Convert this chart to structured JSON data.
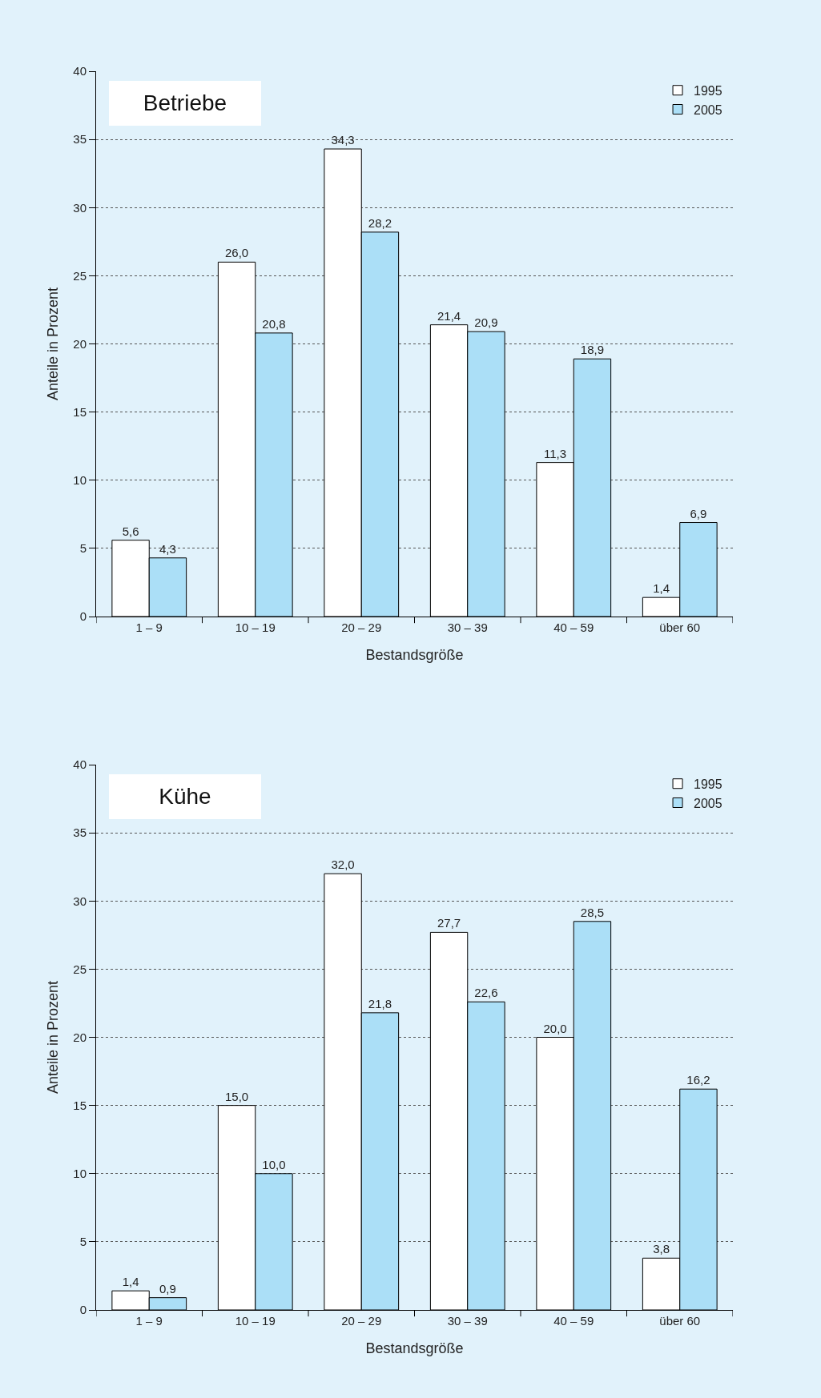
{
  "chart_data": [
    {
      "type": "bar",
      "title": "Betriebe",
      "xlabel": "Bestandsgröße",
      "ylabel": "Anteile in Prozent",
      "categories": [
        "1 – 9",
        "10 – 19",
        "20 – 29",
        "30 – 39",
        "40 – 59",
        "über 60"
      ],
      "series": [
        {
          "name": "1995",
          "color": "#ffffff",
          "values": [
            5.6,
            26.0,
            34.3,
            21.4,
            11.3,
            1.4
          ],
          "value_labels": [
            "5,6",
            "26,0",
            "34,3",
            "21,4",
            "11,3",
            "1,4"
          ]
        },
        {
          "name": "2005",
          "color": "#abdff7",
          "values": [
            4.3,
            20.8,
            28.2,
            20.9,
            18.9,
            6.9
          ],
          "value_labels": [
            "4,3",
            "20,8",
            "28,2",
            "20,9",
            "18,9",
            "6,9"
          ]
        }
      ],
      "ylim": [
        0,
        40
      ],
      "yticks": [
        0,
        5,
        10,
        15,
        20,
        25,
        30,
        35,
        40
      ],
      "grid": "y",
      "legend": "top right"
    },
    {
      "type": "bar",
      "title": "Kühe",
      "xlabel": "Bestandsgröße",
      "ylabel": "Anteile in Prozent",
      "categories": [
        "1 – 9",
        "10 – 19",
        "20 – 29",
        "30 – 39",
        "40 – 59",
        "über 60"
      ],
      "series": [
        {
          "name": "1995",
          "color": "#ffffff",
          "values": [
            1.4,
            15.0,
            32.0,
            27.7,
            20.0,
            3.8
          ],
          "value_labels": [
            "1,4",
            "15,0",
            "32,0",
            "27,7",
            "20,0",
            "3,8"
          ]
        },
        {
          "name": "2005",
          "color": "#abdff7",
          "values": [
            0.9,
            10.0,
            21.8,
            22.6,
            28.5,
            16.2
          ],
          "value_labels": [
            "0,9",
            "10,0",
            "21,8",
            "22,6",
            "28,5",
            "16,2"
          ]
        }
      ],
      "ylim": [
        0,
        40
      ],
      "yticks": [
        0,
        5,
        10,
        15,
        20,
        25,
        30,
        35,
        40
      ],
      "grid": "y",
      "legend": "top right"
    }
  ]
}
